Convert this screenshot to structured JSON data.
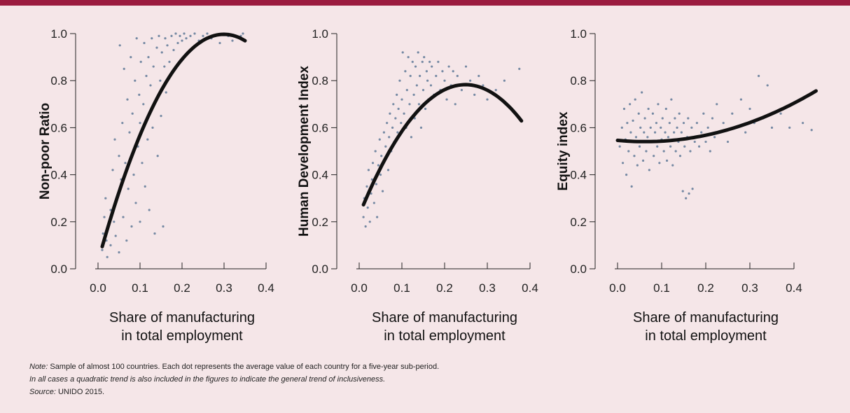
{
  "notes": {
    "note_label": "Note:",
    "note_text": " Sample of almost 100 countries. Each dot represents the average value of each country for a five-year sub-period.",
    "note_line2": "In all cases a quadratic trend is also included in the figures to indicate the general trend of inclusiveness.",
    "source_label": "Source:",
    "source_text": " UNIDO 2015."
  },
  "chart_data": [
    {
      "type": "scatter",
      "title": "",
      "ylabel": "Non-poor Ratio",
      "xlabel": [
        "Share of manufacturing",
        "in total employment"
      ],
      "xlim": [
        0,
        0.45
      ],
      "ylim": [
        0,
        1.0
      ],
      "x_ticks": [
        0,
        0.1,
        0.2,
        0.3,
        0.4
      ],
      "x_tick_labels": [
        "0.0",
        "0.1",
        "0.2",
        "0.3",
        "0.4"
      ],
      "y_ticks": [
        0,
        0.2,
        0.4,
        0.6,
        0.8,
        1.0
      ],
      "y_tick_labels": [
        "0.0",
        "0.2",
        "0.4",
        "0.6",
        "0.8",
        "1.0"
      ],
      "trend": {
        "type": "quadratic",
        "x": [
          0.01,
          0.1,
          0.2,
          0.3,
          0.35
        ],
        "y": [
          0.09,
          0.58,
          0.88,
          1.0,
          0.97
        ]
      },
      "series_points": [
        [
          0.01,
          0.08
        ],
        [
          0.012,
          0.15
        ],
        [
          0.015,
          0.22
        ],
        [
          0.018,
          0.3
        ],
        [
          0.02,
          0.12
        ],
        [
          0.022,
          0.05
        ],
        [
          0.025,
          0.18
        ],
        [
          0.03,
          0.25
        ],
        [
          0.03,
          0.1
        ],
        [
          0.035,
          0.42
        ],
        [
          0.038,
          0.2
        ],
        [
          0.04,
          0.55
        ],
        [
          0.042,
          0.14
        ],
        [
          0.045,
          0.3
        ],
        [
          0.05,
          0.48
        ],
        [
          0.05,
          0.07
        ],
        [
          0.052,
          0.95
        ],
        [
          0.055,
          0.38
        ],
        [
          0.058,
          0.62
        ],
        [
          0.06,
          0.22
        ],
        [
          0.062,
          0.85
        ],
        [
          0.065,
          0.45
        ],
        [
          0.068,
          0.12
        ],
        [
          0.07,
          0.72
        ],
        [
          0.072,
          0.34
        ],
        [
          0.075,
          0.58
        ],
        [
          0.078,
          0.9
        ],
        [
          0.08,
          0.18
        ],
        [
          0.082,
          0.66
        ],
        [
          0.085,
          0.4
        ],
        [
          0.088,
          0.8
        ],
        [
          0.09,
          0.28
        ],
        [
          0.092,
          0.98
        ],
        [
          0.095,
          0.52
        ],
        [
          0.098,
          0.74
        ],
        [
          0.1,
          0.62
        ],
        [
          0.1,
          0.2
        ],
        [
          0.102,
          0.88
        ],
        [
          0.105,
          0.45
        ],
        [
          0.108,
          0.7
        ],
        [
          0.11,
          0.96
        ],
        [
          0.112,
          0.35
        ],
        [
          0.115,
          0.82
        ],
        [
          0.118,
          0.55
        ],
        [
          0.12,
          0.9
        ],
        [
          0.122,
          0.25
        ],
        [
          0.125,
          0.78
        ],
        [
          0.128,
          0.98
        ],
        [
          0.13,
          0.6
        ],
        [
          0.132,
          0.86
        ],
        [
          0.135,
          0.15
        ],
        [
          0.138,
          0.72
        ],
        [
          0.14,
          0.94
        ],
        [
          0.142,
          0.48
        ],
        [
          0.145,
          0.99
        ],
        [
          0.148,
          0.8
        ],
        [
          0.15,
          0.65
        ],
        [
          0.152,
          0.92
        ],
        [
          0.155,
          0.18
        ],
        [
          0.158,
          0.86
        ],
        [
          0.16,
          0.98
        ],
        [
          0.162,
          0.75
        ],
        [
          0.165,
          0.95
        ],
        [
          0.17,
          0.88
        ],
        [
          0.175,
          0.99
        ],
        [
          0.18,
          0.93
        ],
        [
          0.185,
          1.0
        ],
        [
          0.19,
          0.96
        ],
        [
          0.195,
          0.99
        ],
        [
          0.2,
          0.97
        ],
        [
          0.205,
          1.0
        ],
        [
          0.21,
          0.98
        ],
        [
          0.22,
          0.99
        ],
        [
          0.23,
          1.0
        ],
        [
          0.24,
          0.97
        ],
        [
          0.25,
          0.99
        ],
        [
          0.26,
          1.0
        ],
        [
          0.27,
          0.98
        ],
        [
          0.28,
          0.99
        ],
        [
          0.29,
          0.96
        ],
        [
          0.3,
          1.0
        ],
        [
          0.31,
          0.99
        ],
        [
          0.32,
          0.97
        ],
        [
          0.34,
          0.99
        ],
        [
          0.345,
          1.0
        ]
      ]
    },
    {
      "type": "scatter",
      "title": "",
      "ylabel": "Human Development Index",
      "xlabel": [
        "Share of manufacturing",
        "in total employment"
      ],
      "xlim": [
        0,
        0.45
      ],
      "ylim": [
        0,
        1.0
      ],
      "x_ticks": [
        0,
        0.1,
        0.2,
        0.3,
        0.4
      ],
      "x_tick_labels": [
        "0.0",
        "0.1",
        "0.2",
        "0.3",
        "0.4"
      ],
      "y_ticks": [
        0,
        0.2,
        0.4,
        0.6,
        0.8,
        1.0
      ],
      "y_tick_labels": [
        "0.0",
        "0.2",
        "0.4",
        "0.6",
        "0.8",
        "1.0"
      ],
      "trend": {
        "type": "quadratic",
        "x": [
          0.01,
          0.1,
          0.2,
          0.25,
          0.3,
          0.38
        ],
        "y": [
          0.27,
          0.59,
          0.76,
          0.78,
          0.76,
          0.63
        ]
      },
      "series_points": [
        [
          0.01,
          0.22
        ],
        [
          0.012,
          0.3
        ],
        [
          0.015,
          0.18
        ],
        [
          0.018,
          0.35
        ],
        [
          0.02,
          0.26
        ],
        [
          0.022,
          0.42
        ],
        [
          0.025,
          0.2
        ],
        [
          0.028,
          0.32
        ],
        [
          0.03,
          0.38
        ],
        [
          0.032,
          0.45
        ],
        [
          0.035,
          0.28
        ],
        [
          0.038,
          0.5
        ],
        [
          0.04,
          0.36
        ],
        [
          0.042,
          0.22
        ],
        [
          0.045,
          0.44
        ],
        [
          0.048,
          0.55
        ],
        [
          0.05,
          0.4
        ],
        [
          0.052,
          0.48
        ],
        [
          0.055,
          0.33
        ],
        [
          0.058,
          0.58
        ],
        [
          0.06,
          0.46
        ],
        [
          0.062,
          0.52
        ],
        [
          0.065,
          0.62
        ],
        [
          0.068,
          0.42
        ],
        [
          0.07,
          0.56
        ],
        [
          0.072,
          0.66
        ],
        [
          0.075,
          0.5
        ],
        [
          0.078,
          0.6
        ],
        [
          0.08,
          0.7
        ],
        [
          0.082,
          0.54
        ],
        [
          0.085,
          0.64
        ],
        [
          0.088,
          0.74
        ],
        [
          0.09,
          0.58
        ],
        [
          0.092,
          0.68
        ],
        [
          0.095,
          0.8
        ],
        [
          0.098,
          0.62
        ],
        [
          0.1,
          0.72
        ],
        [
          0.102,
          0.92
        ],
        [
          0.105,
          0.66
        ],
        [
          0.108,
          0.84
        ],
        [
          0.11,
          0.6
        ],
        [
          0.112,
          0.76
        ],
        [
          0.115,
          0.9
        ],
        [
          0.118,
          0.7
        ],
        [
          0.12,
          0.82
        ],
        [
          0.122,
          0.56
        ],
        [
          0.125,
          0.88
        ],
        [
          0.128,
          0.74
        ],
        [
          0.13,
          0.64
        ],
        [
          0.132,
          0.86
        ],
        [
          0.135,
          0.78
        ],
        [
          0.138,
          0.92
        ],
        [
          0.14,
          0.7
        ],
        [
          0.142,
          0.82
        ],
        [
          0.145,
          0.6
        ],
        [
          0.148,
          0.88
        ],
        [
          0.15,
          0.76
        ],
        [
          0.152,
          0.9
        ],
        [
          0.155,
          0.68
        ],
        [
          0.158,
          0.84
        ],
        [
          0.16,
          0.8
        ],
        [
          0.162,
          0.72
        ],
        [
          0.165,
          0.88
        ],
        [
          0.168,
          0.78
        ],
        [
          0.17,
          0.86
        ],
        [
          0.175,
          0.74
        ],
        [
          0.18,
          0.82
        ],
        [
          0.185,
          0.88
        ],
        [
          0.19,
          0.76
        ],
        [
          0.195,
          0.84
        ],
        [
          0.2,
          0.8
        ],
        [
          0.205,
          0.72
        ],
        [
          0.21,
          0.86
        ],
        [
          0.215,
          0.78
        ],
        [
          0.22,
          0.84
        ],
        [
          0.225,
          0.7
        ],
        [
          0.23,
          0.82
        ],
        [
          0.24,
          0.76
        ],
        [
          0.25,
          0.86
        ],
        [
          0.26,
          0.8
        ],
        [
          0.27,
          0.74
        ],
        [
          0.28,
          0.82
        ],
        [
          0.29,
          0.78
        ],
        [
          0.3,
          0.72
        ],
        [
          0.32,
          0.76
        ],
        [
          0.34,
          0.8
        ],
        [
          0.375,
          0.85
        ]
      ]
    },
    {
      "type": "scatter",
      "title": "",
      "ylabel": "Equity index",
      "xlabel": [
        "Share of manufacturing",
        "in total employment"
      ],
      "xlim": [
        0,
        0.45
      ],
      "ylim": [
        0,
        1.0
      ],
      "x_ticks": [
        0,
        0.1,
        0.2,
        0.3,
        0.4
      ],
      "x_tick_labels": [
        "0.0",
        "0.1",
        "0.2",
        "0.3",
        "0.4"
      ],
      "y_ticks": [
        0,
        0.2,
        0.4,
        0.6,
        0.8,
        1.0
      ],
      "y_tick_labels": [
        "0.0",
        "0.2",
        "0.4",
        "0.6",
        "0.8",
        "1.0"
      ],
      "trend": {
        "type": "quadratic",
        "x": [
          0.0,
          0.05,
          0.1,
          0.2,
          0.3,
          0.4,
          0.45
        ],
        "y": [
          0.545,
          0.54,
          0.545,
          0.57,
          0.62,
          0.7,
          0.76
        ]
      },
      "series_points": [
        [
          0.005,
          0.52
        ],
        [
          0.01,
          0.6
        ],
        [
          0.012,
          0.45
        ],
        [
          0.015,
          0.68
        ],
        [
          0.018,
          0.55
        ],
        [
          0.02,
          0.4
        ],
        [
          0.022,
          0.62
        ],
        [
          0.025,
          0.5
        ],
        [
          0.028,
          0.7
        ],
        [
          0.03,
          0.58
        ],
        [
          0.032,
          0.35
        ],
        [
          0.035,
          0.63
        ],
        [
          0.038,
          0.48
        ],
        [
          0.04,
          0.72
        ],
        [
          0.042,
          0.56
        ],
        [
          0.045,
          0.44
        ],
        [
          0.048,
          0.66
        ],
        [
          0.05,
          0.52
        ],
        [
          0.052,
          0.6
        ],
        [
          0.055,
          0.75
        ],
        [
          0.058,
          0.46
        ],
        [
          0.06,
          0.58
        ],
        [
          0.062,
          0.64
        ],
        [
          0.065,
          0.5
        ],
        [
          0.068,
          0.56
        ],
        [
          0.07,
          0.68
        ],
        [
          0.072,
          0.42
        ],
        [
          0.075,
          0.6
        ],
        [
          0.078,
          0.54
        ],
        [
          0.08,
          0.66
        ],
        [
          0.082,
          0.48
        ],
        [
          0.085,
          0.58
        ],
        [
          0.088,
          0.62
        ],
        [
          0.09,
          0.52
        ],
        [
          0.092,
          0.7
        ],
        [
          0.095,
          0.45
        ],
        [
          0.098,
          0.6
        ],
        [
          0.1,
          0.55
        ],
        [
          0.102,
          0.64
        ],
        [
          0.105,
          0.5
        ],
        [
          0.108,
          0.58
        ],
        [
          0.11,
          0.68
        ],
        [
          0.112,
          0.46
        ],
        [
          0.115,
          0.56
        ],
        [
          0.118,
          0.62
        ],
        [
          0.12,
          0.52
        ],
        [
          0.122,
          0.72
        ],
        [
          0.125,
          0.44
        ],
        [
          0.128,
          0.58
        ],
        [
          0.13,
          0.64
        ],
        [
          0.132,
          0.5
        ],
        [
          0.135,
          0.6
        ],
        [
          0.138,
          0.54
        ],
        [
          0.14,
          0.66
        ],
        [
          0.142,
          0.48
        ],
        [
          0.145,
          0.58
        ],
        [
          0.148,
          0.33
        ],
        [
          0.15,
          0.62
        ],
        [
          0.152,
          0.52
        ],
        [
          0.155,
          0.3
        ],
        [
          0.158,
          0.56
        ],
        [
          0.16,
          0.64
        ],
        [
          0.162,
          0.32
        ],
        [
          0.165,
          0.5
        ],
        [
          0.168,
          0.6
        ],
        [
          0.17,
          0.34
        ],
        [
          0.175,
          0.54
        ],
        [
          0.18,
          0.62
        ],
        [
          0.185,
          0.52
        ],
        [
          0.19,
          0.58
        ],
        [
          0.195,
          0.66
        ],
        [
          0.2,
          0.54
        ],
        [
          0.205,
          0.6
        ],
        [
          0.21,
          0.5
        ],
        [
          0.215,
          0.64
        ],
        [
          0.22,
          0.56
        ],
        [
          0.225,
          0.7
        ],
        [
          0.23,
          0.58
        ],
        [
          0.24,
          0.62
        ],
        [
          0.25,
          0.54
        ],
        [
          0.26,
          0.66
        ],
        [
          0.27,
          0.6
        ],
        [
          0.28,
          0.72
        ],
        [
          0.29,
          0.58
        ],
        [
          0.3,
          0.68
        ],
        [
          0.31,
          0.62
        ],
        [
          0.32,
          0.82
        ],
        [
          0.33,
          0.64
        ],
        [
          0.34,
          0.78
        ],
        [
          0.35,
          0.6
        ],
        [
          0.37,
          0.66
        ],
        [
          0.39,
          0.6
        ],
        [
          0.42,
          0.62
        ],
        [
          0.44,
          0.59
        ]
      ]
    }
  ]
}
